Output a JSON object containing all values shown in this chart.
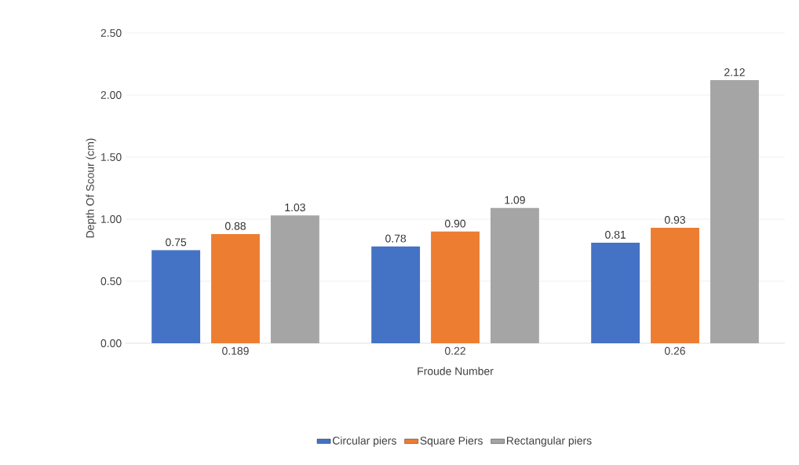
{
  "chart_data": {
    "type": "bar",
    "xlabel": "Froude Number",
    "ylabel": "Depth Of Scour (cm)",
    "categories": [
      "0.189",
      "0.22",
      "0.26"
    ],
    "series": [
      {
        "name": "Circular piers",
        "color": "#4472c4",
        "values": [
          0.75,
          0.78,
          0.81
        ],
        "value_labels": [
          "0.75",
          "0.78",
          "0.81"
        ]
      },
      {
        "name": "Square Piers",
        "color": "#ed7d31",
        "values": [
          0.88,
          0.9,
          0.93
        ],
        "value_labels": [
          "0.88",
          "0.90",
          "0.93"
        ]
      },
      {
        "name": "Rectangular piers",
        "color": "#a5a5a5",
        "values": [
          1.03,
          1.09,
          2.12
        ],
        "value_labels": [
          "1.03",
          "1.09",
          "2.12"
        ]
      }
    ],
    "ylim": [
      0,
      2.5
    ],
    "yticks": [
      {
        "value": 0,
        "label": "0.00"
      },
      {
        "value": 0.5,
        "label": "0.50"
      },
      {
        "value": 1,
        "label": "1.00"
      },
      {
        "value": 1.5,
        "label": "1.50"
      },
      {
        "value": 2,
        "label": "2.00"
      },
      {
        "value": 2.5,
        "label": "2.50"
      }
    ],
    "grid": "y",
    "legend": "bottom"
  }
}
